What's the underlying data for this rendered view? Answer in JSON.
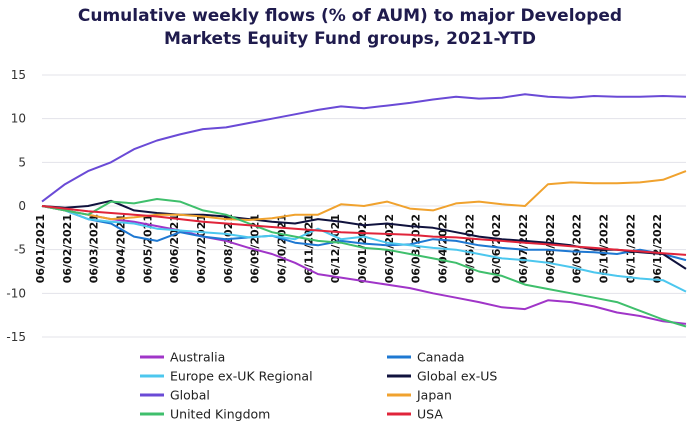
{
  "chart_data": {
    "type": "line",
    "title_line1": "Cumulative weekly flows (% of AUM) to major Developed",
    "title_line2": "Markets Equity Fund groups, 2021-YTD",
    "xlabel": "",
    "ylabel": "",
    "ylim": [
      -15,
      15
    ],
    "yticks": [
      "-15",
      "-10",
      "-5",
      "0",
      "5",
      "10",
      "15"
    ],
    "x_tick_labels": [
      "06/01/2021",
      "06/02/2021",
      "06/03/2021",
      "06/04/2021",
      "06/05/2021",
      "06/06/2021",
      "06/07/2021",
      "06/08/2021",
      "06/09/2021",
      "06/10/2021",
      "06/11/2021",
      "06/12/2021",
      "06/01/2022",
      "06/02/2022",
      "06/03/2022",
      "06/04/2022",
      "06/05/2022",
      "06/06/2022",
      "06/07/2022",
      "06/08/2022",
      "06/09/2022",
      "06/10/2022",
      "06/11/2022",
      "06/12/2022"
    ],
    "grid": "horizontal",
    "legend_placement": "bottom",
    "series": [
      {
        "name": "Australia",
        "color": "#a035c8",
        "values": [
          0,
          -0.5,
          -1.0,
          -1.5,
          -1.8,
          -2.3,
          -2.8,
          -3.5,
          -4.0,
          -4.8,
          -5.5,
          -6.5,
          -7.8,
          -8.2,
          -8.6,
          -9.0,
          -9.4,
          -10.0,
          -10.5,
          -11.0,
          -11.6,
          -11.8,
          -10.8,
          -11.0,
          -11.5,
          -12.2,
          -12.6,
          -13.2,
          -13.5
        ]
      },
      {
        "name": "Canada",
        "color": "#1e78d2",
        "values": [
          0,
          -0.5,
          -1.5,
          -2.0,
          -3.5,
          -4.0,
          -3.0,
          -3.5,
          -3.8,
          -3.6,
          -3.4,
          -4.2,
          -4.5,
          -4.0,
          -4.3,
          -4.5,
          -4.4,
          -3.8,
          -4.0,
          -4.5,
          -4.8,
          -5.0,
          -5.0,
          -5.2,
          -5.3,
          -5.5,
          -5.0,
          -5.5,
          -6.2
        ]
      },
      {
        "name": "Europe ex-UK Regional",
        "color": "#4cc7ee",
        "values": [
          0,
          -0.5,
          -1.5,
          -1.8,
          -2.0,
          -2.6,
          -2.8,
          -3.0,
          -3.2,
          -3.6,
          -3.4,
          -3.8,
          -2.6,
          -3.8,
          -3.5,
          -4.2,
          -4.5,
          -4.8,
          -5.0,
          -5.5,
          -6.0,
          -6.2,
          -6.5,
          -7.0,
          -7.6,
          -8.0,
          -8.3,
          -8.5,
          -9.8
        ]
      },
      {
        "name": "Global ex-US",
        "color": "#10123d",
        "values": [
          0,
          -0.2,
          0.0,
          0.6,
          -0.5,
          -0.8,
          -1.0,
          -1.0,
          -1.2,
          -1.5,
          -1.8,
          -2.0,
          -1.5,
          -1.8,
          -2.2,
          -2.0,
          -2.3,
          -2.5,
          -3.0,
          -3.5,
          -3.8,
          -4.0,
          -4.2,
          -4.5,
          -5.0,
          -5.0,
          -5.3,
          -5.5,
          -7.2
        ]
      },
      {
        "name": "Global",
        "color": "#6a4ad6",
        "values": [
          0.5,
          2.5,
          4.0,
          5.0,
          6.5,
          7.5,
          8.2,
          8.8,
          9.0,
          9.5,
          10.0,
          10.5,
          11.0,
          11.4,
          11.2,
          11.5,
          11.8,
          12.2,
          12.5,
          12.3,
          12.4,
          12.8,
          12.5,
          12.4,
          12.6,
          12.5,
          12.5,
          12.6,
          12.5
        ]
      },
      {
        "name": "Japan",
        "color": "#f0a22e",
        "values": [
          0,
          -0.5,
          -1.0,
          -1.5,
          -1.3,
          -1.0,
          -1.0,
          -1.2,
          -1.5,
          -1.6,
          -1.4,
          -1.0,
          -1.0,
          0.2,
          0.0,
          0.5,
          -0.3,
          -0.5,
          0.3,
          0.5,
          0.2,
          0.0,
          2.5,
          2.7,
          2.6,
          2.6,
          2.7,
          3.0,
          4.0
        ]
      },
      {
        "name": "United Kingdom",
        "color": "#3fbf6c",
        "values": [
          0,
          -0.5,
          -1.0,
          0.5,
          0.3,
          0.8,
          0.5,
          -0.5,
          -1.0,
          -2.0,
          -3.0,
          -3.5,
          -4.0,
          -4.2,
          -4.8,
          -5.0,
          -5.5,
          -6.0,
          -6.5,
          -7.5,
          -8.0,
          -9.0,
          -9.5,
          -10.0,
          -10.5,
          -11.0,
          -12.0,
          -13.0,
          -13.8
        ]
      },
      {
        "name": "USA",
        "color": "#e0243a",
        "values": [
          0,
          -0.3,
          -0.6,
          -0.8,
          -1.0,
          -1.2,
          -1.5,
          -1.8,
          -2.0,
          -2.2,
          -2.4,
          -2.6,
          -2.8,
          -3.0,
          -3.1,
          -3.2,
          -3.3,
          -3.5,
          -3.6,
          -3.8,
          -4.0,
          -4.2,
          -4.4,
          -4.6,
          -4.8,
          -5.0,
          -5.2,
          -5.4,
          -5.6
        ]
      }
    ]
  }
}
